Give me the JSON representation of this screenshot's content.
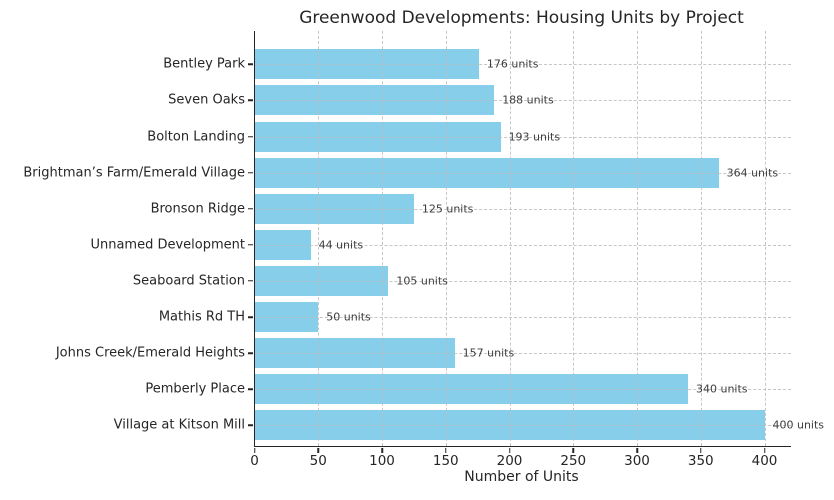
{
  "chart_data": {
    "type": "bar",
    "orientation": "horizontal",
    "title": "Greenwood Developments: Housing Units by Project",
    "xlabel": "Number of Units",
    "categories": [
      "Bentley Park",
      "Seven Oaks",
      "Bolton Landing",
      "Brightman’s Farm/Emerald Village",
      "Bronson Ridge",
      "Unnamed Development",
      "Seaboard Station",
      "Mathis Rd TH",
      "Johns Creek/Emerald Heights",
      "Pemberly Place",
      "Village at Kitson Mill"
    ],
    "values": [
      176,
      188,
      193,
      364,
      125,
      44,
      105,
      50,
      157,
      340,
      400
    ],
    "value_labels": [
      "176 units",
      "188 units",
      "193 units",
      "364 units",
      "125 units",
      "44 units",
      "105 units",
      "50 units",
      "157 units",
      "340 units",
      "400 units"
    ],
    "xticks": [
      0,
      50,
      100,
      150,
      200,
      250,
      300,
      350,
      400
    ],
    "xlim": [
      0,
      420
    ],
    "grid": "dashed-both-axes",
    "legend": "none",
    "bar_color": "#87CEEB",
    "grid_color": "#bdbdbd",
    "axis_color": "#262626",
    "text_color": "#262626",
    "background_color": "#ffffff"
  }
}
